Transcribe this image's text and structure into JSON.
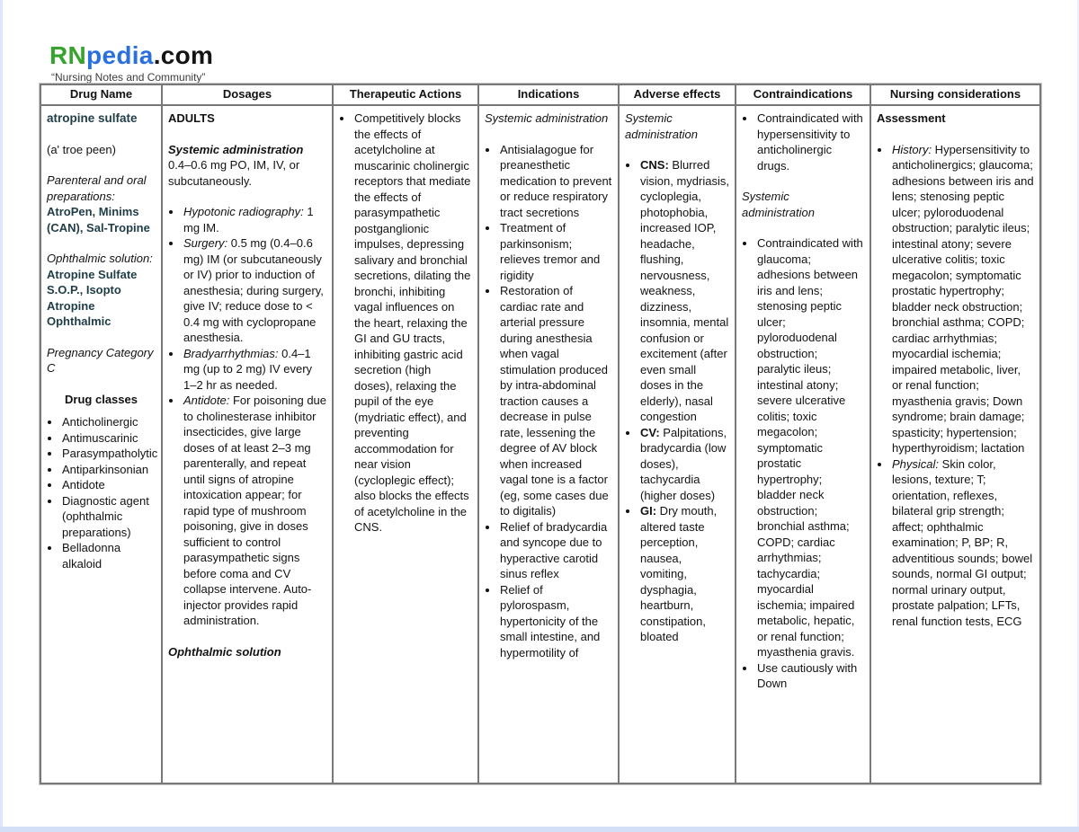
{
  "logo": {
    "rn": "RN",
    "pedia": "pedia",
    "com": ".com",
    "tagline": "“Nursing Notes and Community”"
  },
  "colors": {
    "brand_green": "#36a32f",
    "brand_blue": "#2a70dd",
    "drug_name_teal": "#1f3d47",
    "table_border": "#787878",
    "page_edge_blue": "#d2dff7"
  },
  "table": {
    "headers": [
      "Drug Name",
      "Dosages",
      "Therapeutic Actions",
      "Indications",
      "Adverse effects",
      "Contraindications",
      "Nursing considerations"
    ],
    "drug_name": {
      "generic": "atropine sulfate",
      "pronunciation": "(a' troe peen)",
      "parenteral_label": "Parenteral and oral preparations:",
      "parenteral_brands": "AtroPen, Minims (CAN), Sal-Tropine",
      "ophthalmic_label": "Ophthalmic solution:",
      "ophthalmic_brands": "Atropine Sulfate S.O.P., Isopto Atropine Ophthalmic",
      "pregnancy": "Pregnancy Category C",
      "classes_heading": "Drug classes",
      "classes": [
        "Anticholinergic",
        "Antimuscarinic",
        "Parasympatholytic",
        "Antiparkinsonian",
        "Antidote",
        "Diagnostic agent (ophthalmic preparations)",
        "Belladonna alkaloid"
      ]
    },
    "dosages": {
      "adults": "ADULTS",
      "systemic_heading": "Systemic administration",
      "systemic_text": "0.4–0.6 mg PO, IM, IV, or subcutaneously.",
      "bullets": [
        {
          "lead": "Hypotonic radiography:",
          "text": " 1 mg IM."
        },
        {
          "lead": "Surgery:",
          "text": " 0.5 mg (0.4–0.6 mg) IM (or subcutaneously or IV) prior to induction of anesthesia; during surgery, give IV; reduce dose to < 0.4 mg with cyclopropane anesthesia."
        },
        {
          "lead": "Bradyarrhythmias:",
          "text": " 0.4–1 mg (up to 2 mg) IV every 1–2 hr as needed."
        },
        {
          "lead": "Antidote:",
          "text": " For poisoning due to cholinesterase inhibitor insecticides, give large doses of at least 2–3 mg parenterally, and repeat until signs of atropine intoxication appear; for rapid type of mushroom poisoning, give in doses sufficient to control parasympathetic signs before coma and CV collapse intervene. Auto-injector provides rapid administration."
        }
      ],
      "ophthalmic_heading": "Ophthalmic solution"
    },
    "therapeutic_actions": {
      "bullets": [
        "Competitively blocks the effects of acetylcholine at muscarinic cholinergic receptors that mediate the effects of parasympathetic postganglionic impulses, depressing salivary and bronchial secretions, dilating the bronchi, inhibiting vagal influences on the heart, relaxing the GI and GU tracts, inhibiting gastric acid secretion (high doses), relaxing the pupil of the eye (mydriatic effect), and preventing accommodation for near vision (cycloplegic effect); also blocks the effects of acetylcholine in the CNS."
      ]
    },
    "indications": {
      "heading": "Systemic administration",
      "bullets": [
        "Antisialagogue for preanesthetic medication to prevent or reduce respiratory tract secretions",
        "Treatment of parkinsonism; relieves tremor and rigidity",
        "Restoration of cardiac rate and arterial pressure during anesthesia when vagal stimulation produced by intra-abdominal traction causes a decrease in pulse rate, lessening the degree of AV block when increased vagal tone is a factor (eg, some cases due to digitalis)",
        "Relief of bradycardia and syncope due to hyperactive carotid sinus reflex",
        "Relief of pylorospasm, hypertonicity of the small intestine, and hypermotility of"
      ]
    },
    "adverse_effects": {
      "heading": "Systemic administration",
      "bullets": [
        {
          "lead": "CNS:",
          "text": " Blurred vision, mydriasis, cycloplegia, photophobia, increased IOP, headache, flushing, nervousness, weakness, dizziness, insomnia, mental confusion or excitement (after even small doses in the elderly), nasal congestion"
        },
        {
          "lead": "CV:",
          "text": " Palpitations, bradycardia (low doses), tachycardia (higher doses)"
        },
        {
          "lead": "GI:",
          "text": " Dry mouth, altered taste perception, nausea, vomiting, dysphagia, heartburn, constipation, bloated"
        }
      ]
    },
    "contraindications": {
      "bullets_top": [
        "Contraindicated with hypersensitivity to anticholinergic drugs."
      ],
      "heading": "Systemic administration",
      "bullets": [
        "Contraindicated with glaucoma; adhesions between iris and lens; stenosing peptic ulcer; pyloroduodenal obstruction; paralytic ileus; intestinal atony; severe ulcerative colitis; toxic megacolon; symptomatic prostatic hypertrophy; bladder neck obstruction; bronchial asthma; COPD; cardiac arrhythmias; tachycardia; myocardial ischemia; impaired metabolic, hepatic, or renal function; myasthenia gravis.",
        "Use cautiously with Down"
      ]
    },
    "nursing": {
      "heading": "Assessment",
      "bullets": [
        {
          "lead": "History:",
          "text": " Hypersensitivity to anticholinergics; glaucoma; adhesions between iris and lens; stenosing peptic ulcer; pyloroduodenal obstruction; paralytic ileus; intestinal atony; severe ulcerative colitis; toxic megacolon; symptomatic prostatic hypertrophy; bladder neck obstruction; bronchial asthma; COPD; cardiac arrhythmias; myocardial ischemia; impaired metabolic, liver, or renal function; myasthenia gravis; Down syndrome; brain damage; spasticity; hypertension; hyperthyroidism; lactation"
        },
        {
          "lead": "Physical:",
          "text": " Skin color, lesions, texture; T; orientation, reflexes, bilateral grip strength; affect; ophthalmic examination; P, BP; R, adventitious sounds; bowel sounds, normal GI output; normal urinary output, prostate palpation; LFTs, renal function tests, ECG"
        }
      ]
    }
  }
}
